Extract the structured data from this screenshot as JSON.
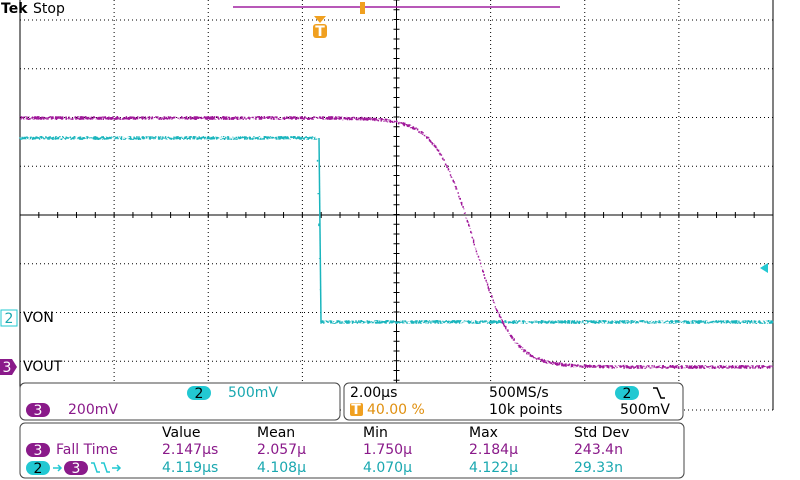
{
  "header": {
    "brand": "Tek",
    "status": "Stop"
  },
  "trigger_marker": "T",
  "channels": [
    {
      "number": "2",
      "label": "VON"
    },
    {
      "number": "3",
      "label": "VOUT"
    }
  ],
  "vertical": [
    {
      "channel": "2",
      "scale": "500mV"
    },
    {
      "channel": "3",
      "scale": "200mV"
    }
  ],
  "horizontal": {
    "timebase": "2.00µs",
    "sample_rate": "500MS/s",
    "trigger_channel": "2",
    "trigger_position": "40.00 %",
    "record_length": "10k points",
    "trigger_level": "500mV"
  },
  "measurements": {
    "headers": [
      "Value",
      "Mean",
      "Min",
      "Max",
      "Std Dev"
    ],
    "rows": [
      {
        "source": "3",
        "label": "Fall Time",
        "values": [
          "2.147µs",
          "2.057µ",
          "1.750µ",
          "2.184µ",
          "243.4n"
        ]
      },
      {
        "source": "2",
        "target": "3",
        "values": [
          "4.119µs",
          "4.108µ",
          "4.070µ",
          "4.122µ",
          "29.33n"
        ]
      }
    ]
  }
}
